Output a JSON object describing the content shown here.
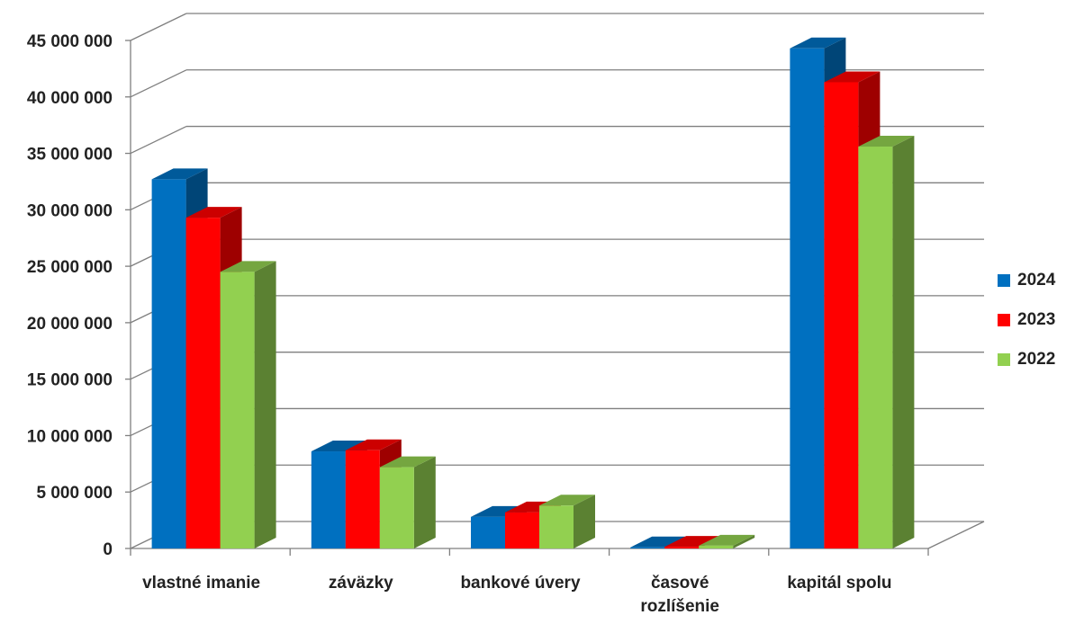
{
  "chart_data": {
    "type": "bar",
    "categories": [
      "vlastné imanie",
      "záväzky",
      "bankové úvery",
      "časové rozlíšenie",
      "kapitál spolu"
    ],
    "series": [
      {
        "name": "2024",
        "color": "#0070C0",
        "values": [
          32700000,
          8600000,
          2800000,
          100000,
          44300000
        ]
      },
      {
        "name": "2023",
        "color": "#FF0000",
        "values": [
          29300000,
          8700000,
          3200000,
          150000,
          41300000
        ]
      },
      {
        "name": "2022",
        "color": "#92D050",
        "values": [
          24500000,
          7200000,
          3800000,
          250000,
          35600000
        ]
      }
    ],
    "ylim": [
      0,
      45000000
    ],
    "yticks": [
      0,
      5000000,
      10000000,
      15000000,
      20000000,
      25000000,
      30000000,
      35000000,
      40000000,
      45000000
    ],
    "ytick_labels": [
      "0",
      "5 000 000",
      "10 000 000",
      "15 000 000",
      "20 000 000",
      "25 000 000",
      "30 000 000",
      "35 000 000",
      "40 000 000",
      "45 000 000"
    ],
    "grid": true,
    "legend_position": "right",
    "style": "3d-clustered-column",
    "title": "",
    "xlabel": "",
    "ylabel": ""
  }
}
